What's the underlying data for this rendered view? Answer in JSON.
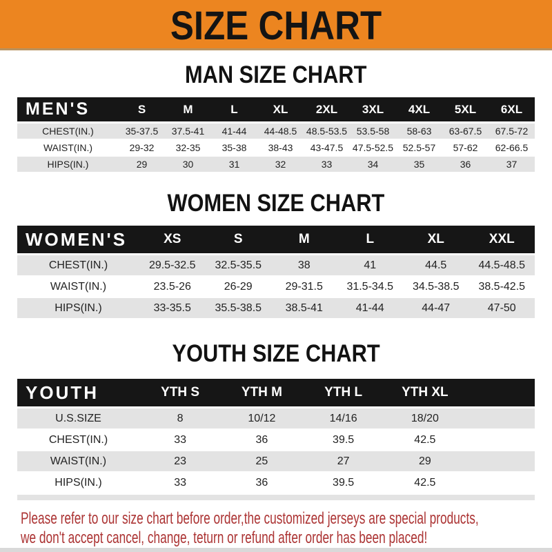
{
  "page": {
    "title": "SIZE CHART",
    "colors": {
      "banner_orange": "#EC8520",
      "header_bar_black": "#161616",
      "row_gray": "#e3e3e3",
      "footer_red": "#AC3434"
    }
  },
  "sections": [
    {
      "heading": "MAN SIZE CHART",
      "table": {
        "label": "MEN'S",
        "columns": [
          "S",
          "M",
          "L",
          "XL",
          "2XL",
          "3XL",
          "4XL",
          "5XL",
          "6XL"
        ],
        "rows": [
          {
            "label": "CHEST(IN.)",
            "values": [
              "35-37.5",
              "37.5-41",
              "41-44",
              "44-48.5",
              "48.5-53.5",
              "53.5-58",
              "58-63",
              "63-67.5",
              "67.5-72"
            ]
          },
          {
            "label": "WAIST(IN.)",
            "values": [
              "29-32",
              "32-35",
              "35-38",
              "38-43",
              "43-47.5",
              "47.5-52.5",
              "52.5-57",
              "57-62",
              "62-66.5"
            ]
          },
          {
            "label": "HIPS(IN.)",
            "values": [
              "29",
              "30",
              "31",
              "32",
              "33",
              "34",
              "35",
              "36",
              "37"
            ]
          }
        ]
      }
    },
    {
      "heading": "WOMEN SIZE CHART",
      "table": {
        "label": "WOMEN'S",
        "columns": [
          "XS",
          "S",
          "M",
          "L",
          "XL",
          "XXL"
        ],
        "rows": [
          {
            "label": "CHEST(IN.)",
            "values": [
              "29.5-32.5",
              "32.5-35.5",
              "38",
              "41",
              "44.5",
              "44.5-48.5"
            ]
          },
          {
            "label": "WAIST(IN.)",
            "values": [
              "23.5-26",
              "26-29",
              "29-31.5",
              "31.5-34.5",
              "34.5-38.5",
              "38.5-42.5"
            ]
          },
          {
            "label": "HIPS(IN.)",
            "values": [
              "33-35.5",
              "35.5-38.5",
              "38.5-41",
              "41-44",
              "44-47",
              "47-50"
            ]
          }
        ]
      }
    },
    {
      "heading": "YOUTH SIZE CHART",
      "table": {
        "label": "YOUTH",
        "columns": [
          "YTH S",
          "YTH M",
          "YTH L",
          "YTH XL"
        ],
        "rows": [
          {
            "label": "U.S.SIZE",
            "values": [
              "8",
              "10/12",
              "14/16",
              "18/20"
            ]
          },
          {
            "label": "CHEST(IN.)",
            "values": [
              "33",
              "36",
              "39.5",
              "42.5"
            ]
          },
          {
            "label": "WAIST(IN.)",
            "values": [
              "23",
              "25",
              "27",
              "29"
            ]
          },
          {
            "label": "HIPS(IN.)",
            "values": [
              "33",
              "36",
              "39.5",
              "42.5"
            ]
          }
        ]
      }
    }
  ],
  "footer": {
    "line1": "Please refer to our size chart before order,the customized jerseys are special products,",
    "line2": "we don't accept cancel, change, teturn or refund after order has been placed!"
  }
}
